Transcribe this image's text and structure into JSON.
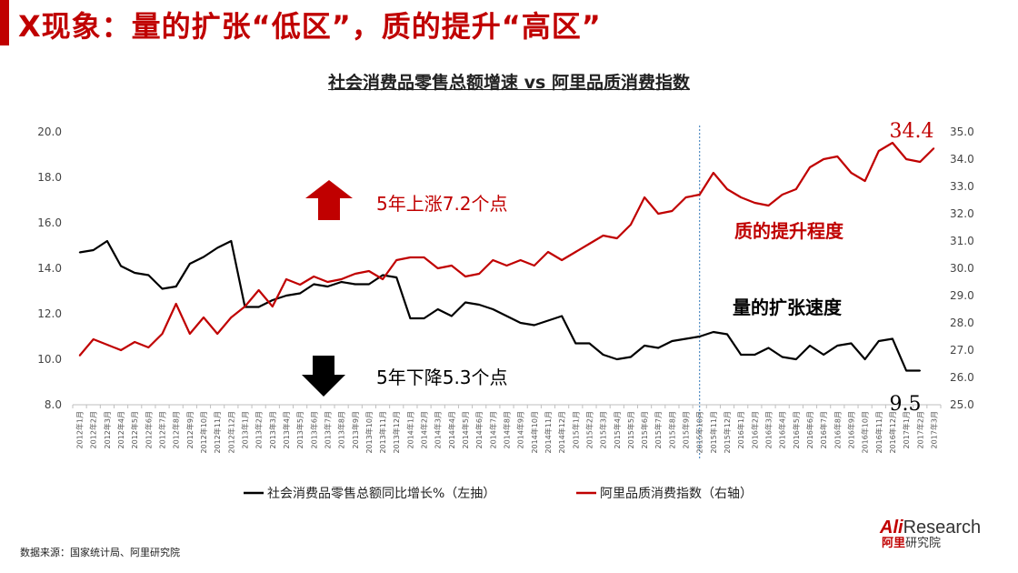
{
  "slide": {
    "title": "X现象：量的扩张“低区”，质的提升“高区”",
    "source": "数据来源：国家统计局、阿里研究院"
  },
  "logo": {
    "brand_red": "Ali",
    "brand_dark": "Research",
    "cn_red": "阿里",
    "cn_dark": "研究院"
  },
  "colors": {
    "accent": "#c00000",
    "black_series": "#000000",
    "red_series": "#c00000"
  },
  "chart_data": {
    "type": "line",
    "title": "社会消费品零售总额增速 vs 阿里品质消费指数",
    "x": [
      "2012年1月",
      "2012年2月",
      "2012年3月",
      "2012年4月",
      "2012年5月",
      "2012年6月",
      "2012年7月",
      "2012年8月",
      "2012年9月",
      "2012年10月",
      "2012年11月",
      "2012年12月",
      "2013年1月",
      "2013年2月",
      "2013年3月",
      "2013年4月",
      "2013年5月",
      "2013年6月",
      "2013年7月",
      "2013年8月",
      "2013年9月",
      "2013年10月",
      "2013年11月",
      "2013年12月",
      "2014年1月",
      "2014年2月",
      "2014年3月",
      "2014年4月",
      "2014年5月",
      "2014年6月",
      "2014年7月",
      "2014年8月",
      "2014年9月",
      "2014年10月",
      "2014年11月",
      "2014年12月",
      "2015年1月",
      "2015年2月",
      "2015年3月",
      "2015年4月",
      "2015年5月",
      "2015年6月",
      "2015年7月",
      "2015年8月",
      "2015年9月",
      "2015年10月",
      "2015年11月",
      "2015年12月",
      "2016年1月",
      "2016年2月",
      "2016年3月",
      "2016年4月",
      "2016年5月",
      "2016年6月",
      "2016年7月",
      "2016年8月",
      "2016年9月",
      "2016年10月",
      "2016年11月",
      "2016年12月",
      "2017年1月",
      "2017年2月",
      "2017年3月"
    ],
    "y_left": {
      "min": 8.0,
      "max": 20.0,
      "step": 2.0,
      "ticks": [
        "8.0",
        "10.0",
        "12.0",
        "14.0",
        "16.0",
        "18.0",
        "20.0"
      ]
    },
    "y_right": {
      "min": 25.0,
      "max": 35.0,
      "step": 1.0,
      "ticks": [
        "25.0",
        "26.0",
        "27.0",
        "28.0",
        "29.0",
        "30.0",
        "31.0",
        "32.0",
        "33.0",
        "34.0",
        "35.0"
      ]
    },
    "series": [
      {
        "name": "社会消费品零售总额同比增长%（左抽）",
        "axis": "left",
        "color": "#000000",
        "values": [
          14.7,
          14.8,
          15.2,
          14.1,
          13.8,
          13.7,
          13.1,
          13.2,
          14.2,
          14.5,
          14.9,
          15.2,
          12.3,
          12.3,
          12.6,
          12.8,
          12.9,
          13.3,
          13.2,
          13.4,
          13.3,
          13.3,
          13.7,
          13.6,
          11.8,
          11.8,
          12.2,
          11.9,
          12.5,
          12.4,
          12.2,
          11.9,
          11.6,
          11.5,
          11.7,
          11.9,
          10.7,
          10.7,
          10.2,
          10.0,
          10.1,
          10.6,
          10.5,
          10.8,
          10.9,
          11.0,
          11.2,
          11.1,
          10.2,
          10.2,
          10.5,
          10.1,
          10.0,
          10.6,
          10.2,
          10.6,
          10.7,
          10.0,
          10.8,
          10.9,
          9.5,
          9.5,
          null
        ]
      },
      {
        "name": "阿里品质消费指数（右轴）",
        "axis": "right",
        "color": "#c00000",
        "values": [
          26.8,
          27.4,
          27.2,
          27.0,
          27.3,
          27.1,
          27.6,
          28.7,
          27.6,
          28.2,
          27.6,
          28.2,
          28.6,
          29.2,
          28.6,
          29.6,
          29.4,
          29.7,
          29.5,
          29.6,
          29.8,
          29.9,
          29.6,
          30.3,
          30.4,
          30.4,
          30.0,
          30.1,
          29.7,
          29.8,
          30.3,
          30.1,
          30.3,
          30.1,
          30.6,
          30.3,
          30.6,
          30.9,
          31.2,
          31.1,
          31.6,
          32.6,
          32.0,
          32.1,
          32.6,
          32.7,
          33.5,
          32.9,
          32.6,
          32.4,
          32.3,
          32.7,
          32.9,
          33.7,
          34.0,
          34.1,
          33.5,
          33.2,
          34.3,
          34.6,
          34.0,
          33.9,
          34.4
        ]
      }
    ],
    "annotations": {
      "up_text": "5年上涨7.2个点",
      "down_text": "5年下降5.3个点",
      "quality_label": "质的提升程度",
      "quantity_label": "量的扩张速度",
      "end_right_value": "34.4",
      "end_left_value": "9.5"
    },
    "vertical_marker": "2015年10月",
    "legend": {
      "position": "bottom"
    },
    "grid": false
  }
}
